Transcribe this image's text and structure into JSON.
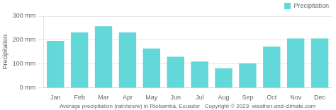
{
  "chart_data": {
    "type": "bar",
    "categories": [
      "Jan",
      "Feb",
      "Mar",
      "Apr",
      "May",
      "Jun",
      "Jul",
      "Aug",
      "Sep",
      "Oct",
      "Nov",
      "Dec"
    ],
    "series": [
      {
        "name": "Precipitation",
        "color": "#62d8d8",
        "values": [
          197,
          232,
          258,
          232,
          165,
          130,
          110,
          82,
          103,
          173,
          207,
          207
        ]
      }
    ],
    "ylabel": "Precipitation",
    "xlabel": "Average precipitation (rain/snow) in Riobamba, Ecuador   Copyright © 2023  weather-and-climate.com",
    "ylim": [
      0,
      300
    ],
    "yticks": [
      {
        "value": 0,
        "label": "0 mm"
      },
      {
        "value": 100,
        "label": "100 mm"
      },
      {
        "value": 200,
        "label": "200 mm"
      },
      {
        "value": 300,
        "label": "300 mm"
      }
    ],
    "grid": true,
    "legend": "upper right"
  }
}
